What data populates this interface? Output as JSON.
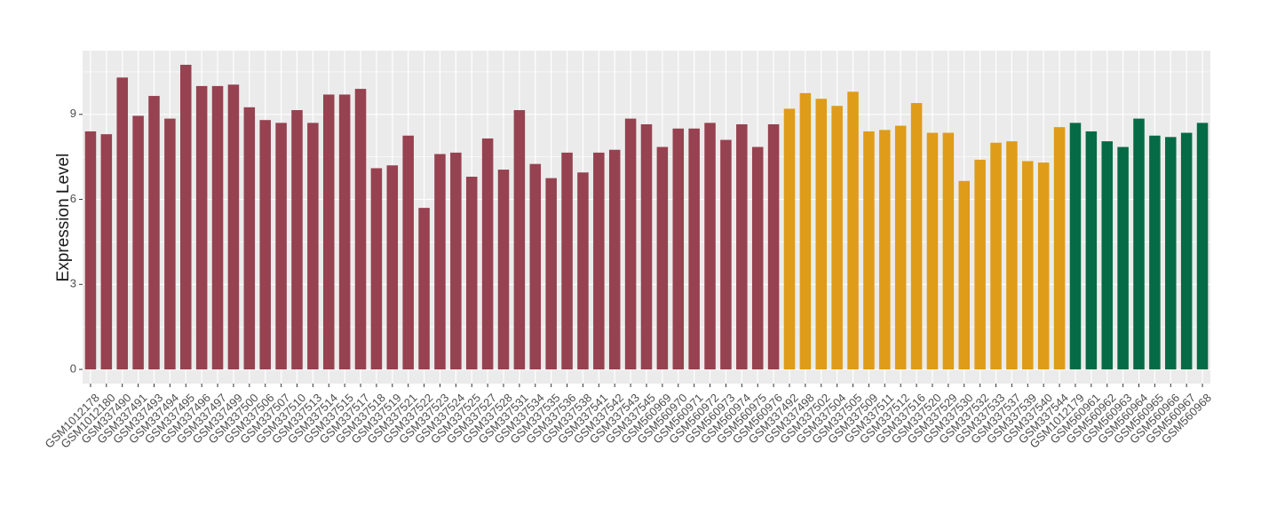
{
  "chart_data": {
    "type": "bar",
    "y_label": "Expression Level",
    "categories": [
      "GSM1012178",
      "GSM1012180",
      "GSM337490",
      "GSM337491",
      "GSM337493",
      "GSM337494",
      "GSM337495",
      "GSM337496",
      "GSM337497",
      "GSM337499",
      "GSM337500",
      "GSM337506",
      "GSM337507",
      "GSM337510",
      "GSM337513",
      "GSM337514",
      "GSM337515",
      "GSM337517",
      "GSM337518",
      "GSM337519",
      "GSM337521",
      "GSM337522",
      "GSM337523",
      "GSM337524",
      "GSM337525",
      "GSM337527",
      "GSM337528",
      "GSM337531",
      "GSM337534",
      "GSM337535",
      "GSM337536",
      "GSM337538",
      "GSM337541",
      "GSM337542",
      "GSM337543",
      "GSM337545",
      "GSM560969",
      "GSM560970",
      "GSM560971",
      "GSM560972",
      "GSM560973",
      "GSM560974",
      "GSM560975",
      "GSM560976",
      "GSM337492",
      "GSM337498",
      "GSM337502",
      "GSM337504",
      "GSM337505",
      "GSM337509",
      "GSM337511",
      "GSM337512",
      "GSM337516",
      "GSM337520",
      "GSM337529",
      "GSM337530",
      "GSM337532",
      "GSM337533",
      "GSM337537",
      "GSM337539",
      "GSM337540",
      "GSM337544",
      "GSM1012179",
      "GSM560961",
      "GSM560962",
      "GSM560963",
      "GSM560964",
      "GSM560965",
      "GSM560966",
      "GSM560967",
      "GSM560968"
    ],
    "values": [
      8.4,
      8.3,
      10.3,
      8.95,
      9.65,
      8.85,
      10.75,
      10.0,
      10.0,
      10.05,
      9.25,
      8.8,
      8.7,
      9.15,
      8.7,
      9.7,
      9.7,
      9.9,
      7.1,
      7.2,
      8.25,
      5.7,
      7.6,
      7.65,
      6.8,
      8.15,
      7.05,
      9.15,
      7.25,
      6.75,
      7.65,
      6.95,
      7.65,
      7.75,
      8.85,
      8.65,
      7.85,
      8.5,
      8.5,
      8.7,
      8.1,
      8.65,
      7.85,
      8.65,
      9.2,
      9.75,
      9.55,
      9.3,
      9.8,
      8.4,
      8.45,
      8.6,
      9.4,
      8.35,
      8.35,
      6.65,
      7.4,
      8.0,
      8.05,
      7.35,
      7.3,
      8.55,
      8.7,
      8.4,
      8.05,
      7.85,
      8.85,
      8.25,
      8.2,
      8.35,
      8.7
    ],
    "bar_colors": [
      "#964250",
      "#964250",
      "#964250",
      "#964250",
      "#964250",
      "#964250",
      "#964250",
      "#964250",
      "#964250",
      "#964250",
      "#964250",
      "#964250",
      "#964250",
      "#964250",
      "#964250",
      "#964250",
      "#964250",
      "#964250",
      "#964250",
      "#964250",
      "#964250",
      "#964250",
      "#964250",
      "#964250",
      "#964250",
      "#964250",
      "#964250",
      "#964250",
      "#964250",
      "#964250",
      "#964250",
      "#964250",
      "#964250",
      "#964250",
      "#964250",
      "#964250",
      "#964250",
      "#964250",
      "#964250",
      "#964250",
      "#964250",
      "#964250",
      "#964250",
      "#964250",
      "#DE9C19",
      "#DE9C19",
      "#DE9C19",
      "#DE9C19",
      "#DE9C19",
      "#DE9C19",
      "#DE9C19",
      "#DE9C19",
      "#DE9C19",
      "#DE9C19",
      "#DE9C19",
      "#DE9C19",
      "#DE9C19",
      "#DE9C19",
      "#DE9C19",
      "#DE9C19",
      "#DE9C19",
      "#DE9C19",
      "#056B46",
      "#056B46",
      "#056B46",
      "#056B46",
      "#056B46",
      "#056B46",
      "#056B46",
      "#056B46",
      "#056B46"
    ],
    "ylim": [
      -0.5,
      11.25
    ],
    "yticks": [
      0,
      3,
      6,
      9
    ],
    "grid": true
  }
}
